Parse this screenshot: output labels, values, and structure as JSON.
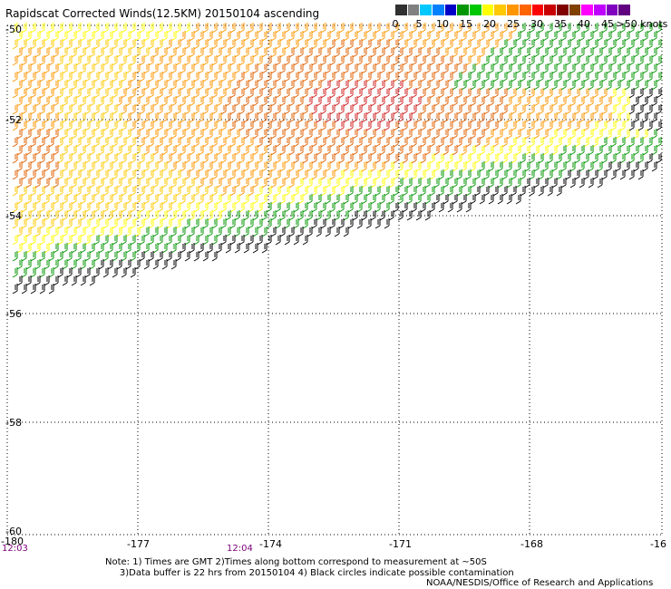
{
  "title": "Rapidscat Corrected Winds(12.5KM) 20150104 ascending",
  "scale": {
    "labels": [
      "0",
      "5",
      "10",
      "15",
      "20",
      "25",
      "30",
      "35",
      "40",
      "45",
      ">50 knots"
    ],
    "colors": [
      "#303030",
      "#808080",
      "#00c8ff",
      "#0080ff",
      "#0000c8",
      "#009600",
      "#00c800",
      "#ffff00",
      "#ffc800",
      "#ff9600",
      "#ff6400",
      "#ff0000",
      "#c80000",
      "#800000",
      "#804000",
      "#ff00ff",
      "#c000ff",
      "#8000c0",
      "#600080"
    ]
  },
  "axes": {
    "lat_labels": [
      "-50",
      "-52",
      "-54",
      "-56",
      "-58",
      "-60"
    ],
    "lon_labels": [
      "-180",
      "-177",
      "-174",
      "-171",
      "-168",
      "-16"
    ]
  },
  "times": [
    {
      "text": "12:03"
    },
    {
      "text": "12:04"
    }
  ],
  "notes": {
    "line1": "Note: 1) Times are GMT 2)Times along bottom correspond to measurement at ~50S",
    "line2": "     3)Data buffer is 22 hrs from 20150104 4) Black circles indicate possible contamination",
    "credit": "NOAA/NESDIS/Office of Research and Applications"
  },
  "wind_colors": {
    "black": "#000000",
    "green": "#009600",
    "yellow": "#ffff00",
    "gold": "#ffc800",
    "orange": "#ff9600",
    "darkorange": "#e06000",
    "red": "#d02020"
  }
}
